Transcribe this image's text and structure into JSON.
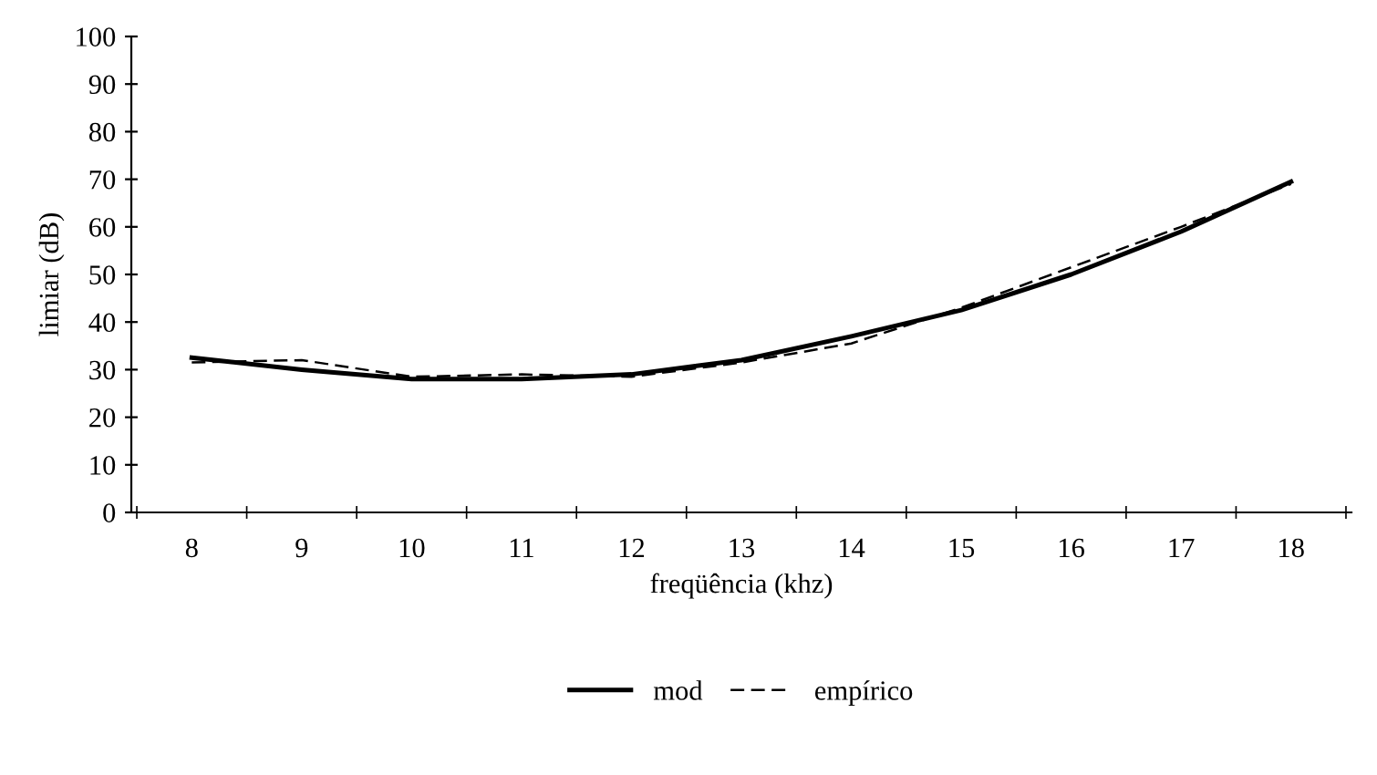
{
  "chart_data": {
    "type": "line",
    "xlabel": "freqüência (khz)",
    "ylabel": "limiar (dB)",
    "categories": [
      "8",
      "9",
      "10",
      "11",
      "12",
      "13",
      "14",
      "15",
      "16",
      "17",
      "18"
    ],
    "series": [
      {
        "name": "mod",
        "color": "#000000",
        "line_style": "solid",
        "values": [
          32.5,
          30,
          28,
          28,
          29,
          32,
          37,
          42.5,
          50,
          59,
          69.5
        ]
      },
      {
        "name": "empírico",
        "color": "#000000",
        "line_style": "dashed",
        "values": [
          31.5,
          32,
          28.5,
          29,
          28.5,
          31.5,
          35.5,
          43,
          51.5,
          60,
          69
        ]
      }
    ],
    "ylim": [
      0,
      100
    ],
    "yticks": [
      0,
      10,
      20,
      30,
      40,
      50,
      60,
      70,
      80,
      90,
      100
    ],
    "grid": false,
    "legend": "bottom",
    "marker": "none"
  }
}
